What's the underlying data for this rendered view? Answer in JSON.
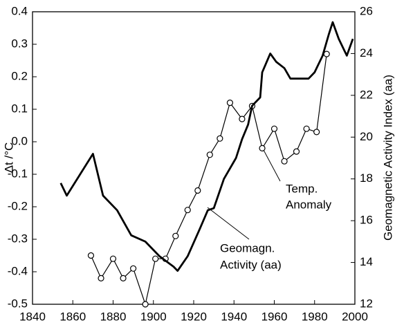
{
  "chart_data": {
    "type": "line",
    "xlabel": null,
    "ylabel": "Δt /°C",
    "y2label": "Geomagnetic Activity Index (aa)",
    "xlim": [
      1840,
      2000
    ],
    "xticks": [
      1840,
      1860,
      1880,
      1900,
      1920,
      1940,
      1960,
      1980,
      2000
    ],
    "ylim": [
      -0.5,
      0.4
    ],
    "yticks": [
      -0.5,
      -0.4,
      -0.3,
      -0.2,
      -0.1,
      {
        "value": 0,
        "label": "0.0"
      },
      0.1,
      0.2,
      0.3,
      0.4
    ],
    "y2lim": [
      12,
      26
    ],
    "y2ticks": [
      12,
      14,
      16,
      18,
      20,
      22,
      24,
      26
    ],
    "series": [
      {
        "color": "#000000",
        "markers": true,
        "axis": "y",
        "x": [
          1869,
          1874,
          1880,
          1885,
          1890,
          1896,
          1901,
          1906,
          1911,
          1917,
          1922,
          1928,
          1933,
          1938,
          1944,
          1949,
          1954,
          1960,
          1965,
          1971,
          1976,
          1981,
          1986
        ],
        "values": [
          -0.35,
          -0.42,
          -0.36,
          -0.42,
          -0.39,
          -0.5,
          -0.36,
          -0.36,
          -0.29,
          -0.21,
          -0.15,
          -0.04,
          0.01,
          0.12,
          0.07,
          0.11,
          -0.02,
          0.04,
          -0.06,
          -0.03,
          0.04,
          0.03,
          0.27
        ]
      },
      {
        "color": "#000000",
        "markers": false,
        "axis": "y2",
        "x": [
          1854,
          1857,
          1870,
          1875,
          1882,
          1889,
          1896,
          1903,
          1910,
          1912,
          1917,
          1923,
          1927,
          1930,
          1935,
          1941,
          1944,
          1947,
          1949,
          1953,
          1954,
          1958,
          1961,
          1965,
          1968,
          1973,
          1977,
          1980,
          1984,
          1987,
          1989,
          1992,
          1996,
          1999
        ],
        "values": [
          17.8,
          17.2,
          19.2,
          17.2,
          16.5,
          15.3,
          15.0,
          14.3,
          13.8,
          13.6,
          14.3,
          15.6,
          16.5,
          16.6,
          18.0,
          19.0,
          19.9,
          20.6,
          21.5,
          21.9,
          23.1,
          24.0,
          23.6,
          23.3,
          22.8,
          22.8,
          22.8,
          23.1,
          23.9,
          24.9,
          25.5,
          24.7,
          23.9,
          24.7
        ]
      }
    ],
    "annotations": [
      [
        "Temp.",
        "Anomaly"
      ],
      [
        "Geomagn.",
        "Activity (aa)"
      ]
    ]
  }
}
